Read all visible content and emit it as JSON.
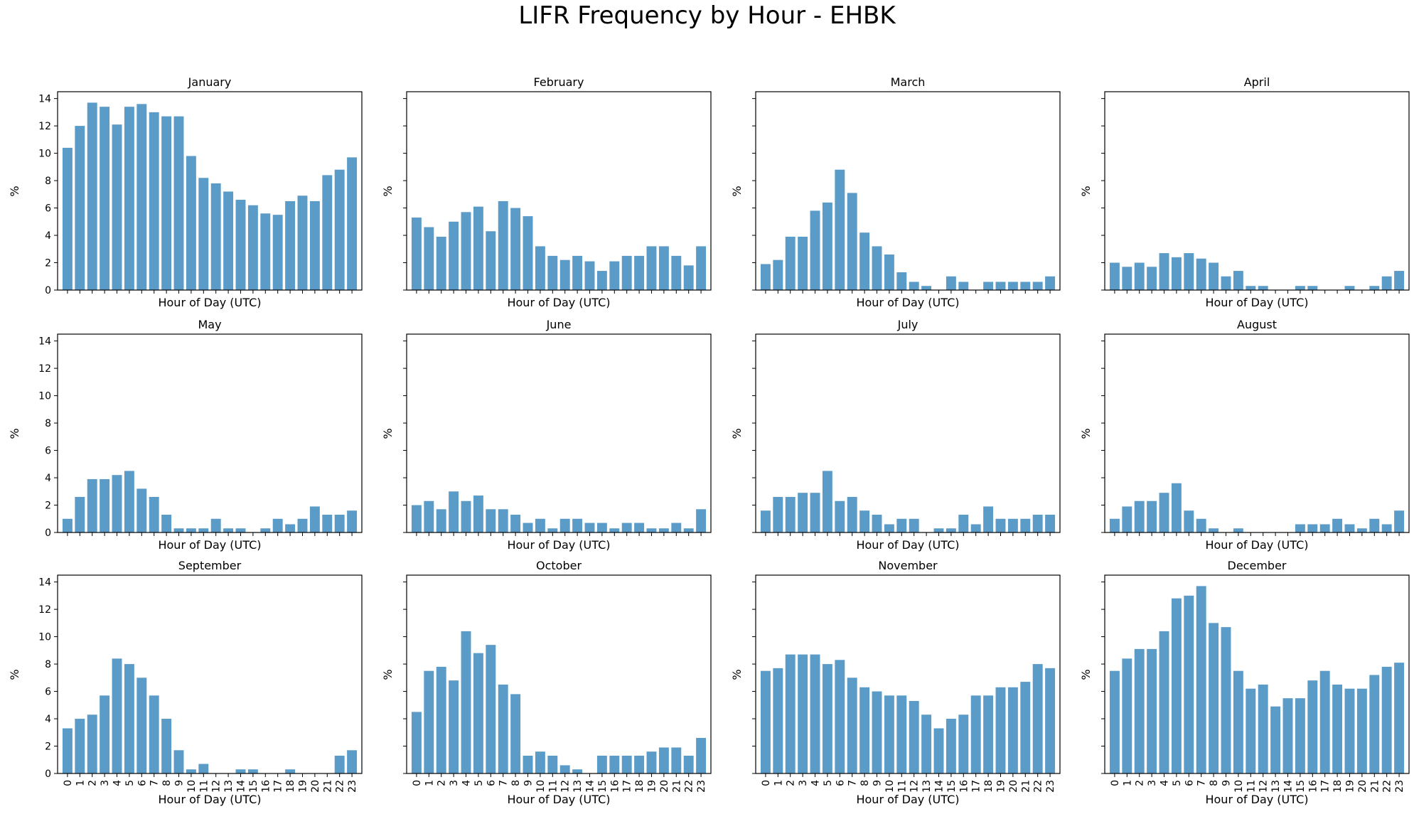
{
  "figure": {
    "title": "LIFR Frequency by Hour - EHBK",
    "bar_color": "#5b9bc8",
    "xlabel": "Hour of Day (UTC)",
    "ylabel": "%"
  },
  "chart_data": [
    {
      "type": "bar",
      "title": "January",
      "xlabel": "Hour of Day (UTC)",
      "ylabel": "%",
      "ylim": [
        0,
        14.5
      ],
      "yticks": [
        0,
        2,
        4,
        6,
        8,
        10,
        12,
        14
      ],
      "categories": [
        "0",
        "1",
        "2",
        "3",
        "4",
        "5",
        "6",
        "7",
        "8",
        "9",
        "10",
        "11",
        "12",
        "13",
        "14",
        "15",
        "16",
        "17",
        "18",
        "19",
        "20",
        "21",
        "22",
        "23"
      ],
      "values": [
        10.4,
        12.0,
        13.7,
        13.4,
        12.1,
        13.4,
        13.6,
        13.0,
        12.7,
        12.7,
        9.8,
        8.2,
        7.8,
        7.2,
        6.6,
        6.2,
        5.6,
        5.5,
        6.5,
        6.9,
        6.5,
        8.4,
        8.8,
        9.7
      ]
    },
    {
      "type": "bar",
      "title": "February",
      "xlabel": "Hour of Day (UTC)",
      "ylabel": "%",
      "ylim": [
        0,
        14.5
      ],
      "yticks": [
        0,
        2,
        4,
        6,
        8,
        10,
        12,
        14
      ],
      "categories": [
        "0",
        "1",
        "2",
        "3",
        "4",
        "5",
        "6",
        "7",
        "8",
        "9",
        "10",
        "11",
        "12",
        "13",
        "14",
        "15",
        "16",
        "17",
        "18",
        "19",
        "20",
        "21",
        "22",
        "23"
      ],
      "values": [
        5.3,
        4.6,
        3.9,
        5.0,
        5.7,
        6.1,
        4.3,
        6.5,
        6.0,
        5.4,
        3.2,
        2.5,
        2.2,
        2.5,
        2.1,
        1.4,
        2.1,
        2.5,
        2.5,
        3.2,
        3.2,
        2.5,
        1.8,
        3.2
      ]
    },
    {
      "type": "bar",
      "title": "March",
      "xlabel": "Hour of Day (UTC)",
      "ylabel": "%",
      "ylim": [
        0,
        14.5
      ],
      "yticks": [
        0,
        2,
        4,
        6,
        8,
        10,
        12,
        14
      ],
      "categories": [
        "0",
        "1",
        "2",
        "3",
        "4",
        "5",
        "6",
        "7",
        "8",
        "9",
        "10",
        "11",
        "12",
        "13",
        "14",
        "15",
        "16",
        "17",
        "18",
        "19",
        "20",
        "21",
        "22",
        "23"
      ],
      "values": [
        1.9,
        2.2,
        3.9,
        3.9,
        5.8,
        6.4,
        8.8,
        7.1,
        4.2,
        3.2,
        2.6,
        1.3,
        0.6,
        0.3,
        0,
        1.0,
        0.6,
        0,
        0.6,
        0.6,
        0.6,
        0.6,
        0.6,
        1.0
      ]
    },
    {
      "type": "bar",
      "title": "April",
      "xlabel": "Hour of Day (UTC)",
      "ylabel": "%",
      "ylim": [
        0,
        14.5
      ],
      "yticks": [
        0,
        2,
        4,
        6,
        8,
        10,
        12,
        14
      ],
      "categories": [
        "0",
        "1",
        "2",
        "3",
        "4",
        "5",
        "6",
        "7",
        "8",
        "9",
        "10",
        "11",
        "12",
        "13",
        "14",
        "15",
        "16",
        "17",
        "18",
        "19",
        "20",
        "21",
        "22",
        "23"
      ],
      "values": [
        2.0,
        1.7,
        2.0,
        1.7,
        2.7,
        2.4,
        2.7,
        2.3,
        2.0,
        1.0,
        1.4,
        0.3,
        0.3,
        0,
        0,
        0.3,
        0.3,
        0,
        0,
        0.3,
        0,
        0.3,
        1.0,
        1.4
      ]
    },
    {
      "type": "bar",
      "title": "May",
      "xlabel": "Hour of Day (UTC)",
      "ylabel": "%",
      "ylim": [
        0,
        14.5
      ],
      "yticks": [
        0,
        2,
        4,
        6,
        8,
        10,
        12,
        14
      ],
      "categories": [
        "0",
        "1",
        "2",
        "3",
        "4",
        "5",
        "6",
        "7",
        "8",
        "9",
        "10",
        "11",
        "12",
        "13",
        "14",
        "15",
        "16",
        "17",
        "18",
        "19",
        "20",
        "21",
        "22",
        "23"
      ],
      "values": [
        1.0,
        2.6,
        3.9,
        3.9,
        4.2,
        4.5,
        3.2,
        2.6,
        1.3,
        0.3,
        0.3,
        0.3,
        1.0,
        0.3,
        0.3,
        0,
        0.3,
        1.0,
        0.6,
        1.0,
        1.9,
        1.3,
        1.3,
        1.6
      ]
    },
    {
      "type": "bar",
      "title": "June",
      "xlabel": "Hour of Day (UTC)",
      "ylabel": "%",
      "ylim": [
        0,
        14.5
      ],
      "yticks": [
        0,
        2,
        4,
        6,
        8,
        10,
        12,
        14
      ],
      "categories": [
        "0",
        "1",
        "2",
        "3",
        "4",
        "5",
        "6",
        "7",
        "8",
        "9",
        "10",
        "11",
        "12",
        "13",
        "14",
        "15",
        "16",
        "17",
        "18",
        "19",
        "20",
        "21",
        "22",
        "23"
      ],
      "values": [
        2.0,
        2.3,
        1.7,
        3.0,
        2.3,
        2.7,
        1.7,
        1.7,
        1.3,
        0.7,
        1.0,
        0.3,
        1.0,
        1.0,
        0.7,
        0.7,
        0.3,
        0.7,
        0.7,
        0.3,
        0.3,
        0.7,
        0.3,
        1.7
      ]
    },
    {
      "type": "bar",
      "title": "July",
      "xlabel": "Hour of Day (UTC)",
      "ylabel": "%",
      "ylim": [
        0,
        14.5
      ],
      "yticks": [
        0,
        2,
        4,
        6,
        8,
        10,
        12,
        14
      ],
      "categories": [
        "0",
        "1",
        "2",
        "3",
        "4",
        "5",
        "6",
        "7",
        "8",
        "9",
        "10",
        "11",
        "12",
        "13",
        "14",
        "15",
        "16",
        "17",
        "18",
        "19",
        "20",
        "21",
        "22",
        "23"
      ],
      "values": [
        1.6,
        2.6,
        2.6,
        2.9,
        2.9,
        4.5,
        2.3,
        2.6,
        1.6,
        1.3,
        0.6,
        1.0,
        1.0,
        0,
        0.3,
        0.3,
        1.3,
        0.6,
        1.9,
        1.0,
        1.0,
        1.0,
        1.3,
        1.3
      ]
    },
    {
      "type": "bar",
      "title": "August",
      "xlabel": "Hour of Day (UTC)",
      "ylabel": "%",
      "ylim": [
        0,
        14.5
      ],
      "yticks": [
        0,
        2,
        4,
        6,
        8,
        10,
        12,
        14
      ],
      "categories": [
        "0",
        "1",
        "2",
        "3",
        "4",
        "5",
        "6",
        "7",
        "8",
        "9",
        "10",
        "11",
        "12",
        "13",
        "14",
        "15",
        "16",
        "17",
        "18",
        "19",
        "20",
        "21",
        "22",
        "23"
      ],
      "values": [
        1.0,
        1.9,
        2.3,
        2.3,
        2.9,
        3.6,
        1.6,
        1.0,
        0.3,
        0,
        0.3,
        0,
        0,
        0,
        0,
        0.6,
        0.6,
        0.6,
        1.0,
        0.6,
        0.3,
        1.0,
        0.6,
        1.6
      ]
    },
    {
      "type": "bar",
      "title": "September",
      "xlabel": "Hour of Day (UTC)",
      "ylabel": "%",
      "ylim": [
        0,
        14.5
      ],
      "yticks": [
        0,
        2,
        4,
        6,
        8,
        10,
        12,
        14
      ],
      "categories": [
        "0",
        "1",
        "2",
        "3",
        "4",
        "5",
        "6",
        "7",
        "8",
        "9",
        "10",
        "11",
        "12",
        "13",
        "14",
        "15",
        "16",
        "17",
        "18",
        "19",
        "20",
        "21",
        "22",
        "23"
      ],
      "values": [
        3.3,
        4.0,
        4.3,
        5.7,
        8.4,
        8.0,
        7.0,
        5.7,
        4.0,
        1.7,
        0.3,
        0.7,
        0,
        0,
        0.3,
        0.3,
        0,
        0,
        0.3,
        0,
        0,
        0,
        1.3,
        1.7
      ]
    },
    {
      "type": "bar",
      "title": "October",
      "xlabel": "Hour of Day (UTC)",
      "ylabel": "%",
      "ylim": [
        0,
        14.5
      ],
      "yticks": [
        0,
        2,
        4,
        6,
        8,
        10,
        12,
        14
      ],
      "categories": [
        "0",
        "1",
        "2",
        "3",
        "4",
        "5",
        "6",
        "7",
        "8",
        "9",
        "10",
        "11",
        "12",
        "13",
        "14",
        "15",
        "16",
        "17",
        "18",
        "19",
        "20",
        "21",
        "22",
        "23"
      ],
      "values": [
        4.5,
        7.5,
        7.8,
        6.8,
        10.4,
        8.8,
        9.4,
        6.5,
        5.8,
        1.3,
        1.6,
        1.3,
        0.6,
        0.3,
        0,
        1.3,
        1.3,
        1.3,
        1.3,
        1.6,
        1.9,
        1.9,
        1.3,
        2.6
      ]
    },
    {
      "type": "bar",
      "title": "November",
      "xlabel": "Hour of Day (UTC)",
      "ylabel": "%",
      "ylim": [
        0,
        14.5
      ],
      "yticks": [
        0,
        2,
        4,
        6,
        8,
        10,
        12,
        14
      ],
      "categories": [
        "0",
        "1",
        "2",
        "3",
        "4",
        "5",
        "6",
        "7",
        "8",
        "9",
        "10",
        "11",
        "12",
        "13",
        "14",
        "15",
        "16",
        "17",
        "18",
        "19",
        "20",
        "21",
        "22",
        "23"
      ],
      "values": [
        7.5,
        7.7,
        8.7,
        8.7,
        8.7,
        8.0,
        8.3,
        7.0,
        6.3,
        6.0,
        5.7,
        5.7,
        5.3,
        4.3,
        3.3,
        4.0,
        4.3,
        5.7,
        5.7,
        6.3,
        6.3,
        6.7,
        8.0,
        7.7
      ]
    },
    {
      "type": "bar",
      "title": "December",
      "xlabel": "Hour of Day (UTC)",
      "ylabel": "%",
      "ylim": [
        0,
        14.5
      ],
      "yticks": [
        0,
        2,
        4,
        6,
        8,
        10,
        12,
        14
      ],
      "categories": [
        "0",
        "1",
        "2",
        "3",
        "4",
        "5",
        "6",
        "7",
        "8",
        "9",
        "10",
        "11",
        "12",
        "13",
        "14",
        "15",
        "16",
        "17",
        "18",
        "19",
        "20",
        "21",
        "22",
        "23"
      ],
      "values": [
        7.5,
        8.4,
        9.1,
        9.1,
        10.4,
        12.8,
        13.0,
        13.7,
        11.0,
        10.7,
        7.5,
        6.2,
        6.5,
        4.9,
        5.5,
        5.5,
        6.8,
        7.5,
        6.5,
        6.2,
        6.2,
        7.2,
        7.8,
        8.1
      ]
    }
  ]
}
